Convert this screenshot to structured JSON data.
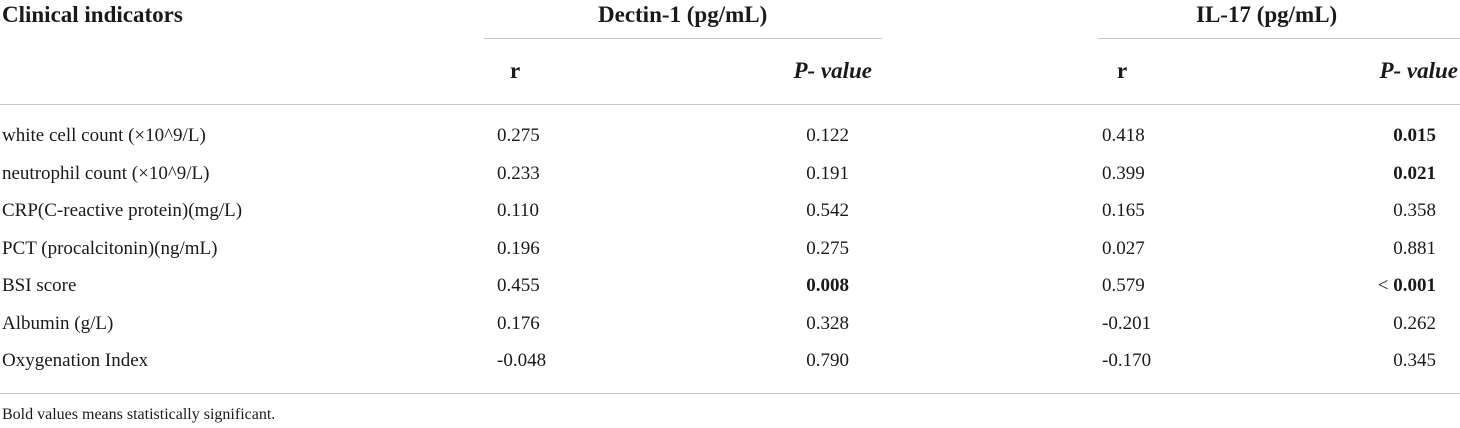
{
  "table": {
    "header": {
      "col0": "Clinical indicators",
      "group1": "Dectin-1 (pg/mL)",
      "group2": "IL-17 (pg/mL)",
      "r_label": "r",
      "p_label": "P- value"
    },
    "rows": [
      {
        "label": "white cell count (×10^9/L)",
        "dectin_r": "0.275",
        "dectin_p": "0.122",
        "dectin_p_bold": false,
        "il17_r": "0.418",
        "il17_p": "0.015",
        "il17_p_bold": true
      },
      {
        "label": "neutrophil count (×10^9/L)",
        "dectin_r": "0.233",
        "dectin_p": "0.191",
        "dectin_p_bold": false,
        "il17_r": "0.399",
        "il17_p": "0.021",
        "il17_p_bold": true
      },
      {
        "label": "CRP(C-reactive protein)(mg/L)",
        "dectin_r": "0.110",
        "dectin_p": "0.542",
        "dectin_p_bold": false,
        "il17_r": "0.165",
        "il17_p": "0.358",
        "il17_p_bold": false
      },
      {
        "label": "PCT (procalcitonin)(ng/mL)",
        "dectin_r": "0.196",
        "dectin_p": "0.275",
        "dectin_p_bold": false,
        "il17_r": "0.027",
        "il17_p": "0.881",
        "il17_p_bold": false
      },
      {
        "label": "BSI score",
        "dectin_r": "0.455",
        "dectin_p": "0.008",
        "dectin_p_bold": true,
        "il17_r": "0.579",
        "il17_p_prefix": "< ",
        "il17_p": "0.001",
        "il17_p_bold": true
      },
      {
        "label": "Albumin (g/L)",
        "dectin_r": "0.176",
        "dectin_p": "0.328",
        "dectin_p_bold": false,
        "il17_r": "-0.201",
        "il17_p": "0.262",
        "il17_p_bold": false
      },
      {
        "label": "Oxygenation Index",
        "dectin_r": "-0.048",
        "dectin_p": "0.790",
        "dectin_p_bold": false,
        "il17_r": "-0.170",
        "il17_p": "0.345",
        "il17_p_bold": false
      }
    ],
    "footnote": "Bold values means statistically significant."
  }
}
